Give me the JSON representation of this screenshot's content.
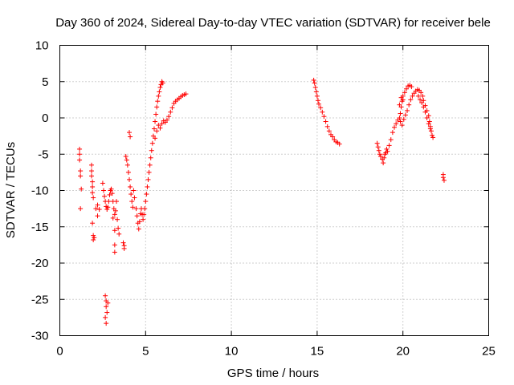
{
  "chart_data": {
    "type": "scatter",
    "title": "Day 360 of 2024, Sidereal Day-to-day VTEC variation (SDTVAR) for receiver bele",
    "xlabel": "GPS time / hours",
    "ylabel": "SDTVAR / TECUs",
    "xlim": [
      0,
      25
    ],
    "ylim": [
      -30,
      10
    ],
    "xticks": [
      0,
      5,
      10,
      15,
      20,
      25
    ],
    "yticks": [
      -30,
      -25,
      -20,
      -15,
      -10,
      -5,
      0,
      5,
      10
    ],
    "xtick_labels": [
      "0",
      "5",
      "10",
      "15",
      "20",
      "25"
    ],
    "ytick_labels": [
      "-30",
      "-25",
      "-20",
      "-15",
      "-10",
      "-5",
      "0",
      "5",
      "10"
    ],
    "grid": true,
    "marker": "+",
    "color": "#ff0000",
    "series": [
      {
        "name": "SDTVAR",
        "points": [
          [
            1.15,
            -4.3
          ],
          [
            1.15,
            -5.0
          ],
          [
            1.15,
            -5.8
          ],
          [
            1.2,
            -7.3
          ],
          [
            1.2,
            -8.0
          ],
          [
            1.25,
            -9.8
          ],
          [
            1.2,
            -12.5
          ],
          [
            1.85,
            -6.5
          ],
          [
            1.85,
            -7.3
          ],
          [
            1.85,
            -8.0
          ],
          [
            1.9,
            -8.8
          ],
          [
            1.9,
            -9.5
          ],
          [
            1.9,
            -10.3
          ],
          [
            1.95,
            -11.0
          ],
          [
            1.9,
            -14.5
          ],
          [
            1.95,
            -16.2
          ],
          [
            1.95,
            -16.8
          ],
          [
            2.0,
            -16.5
          ],
          [
            2.1,
            -12.5
          ],
          [
            2.2,
            -12.0
          ],
          [
            2.3,
            -12.6
          ],
          [
            2.2,
            -13.5
          ],
          [
            2.5,
            -9.0
          ],
          [
            2.55,
            -10.0
          ],
          [
            2.6,
            -10.8
          ],
          [
            2.65,
            -11.5
          ],
          [
            2.7,
            -12.2
          ],
          [
            2.75,
            -12.6
          ],
          [
            2.8,
            -12.3
          ],
          [
            2.85,
            -11.5
          ],
          [
            2.9,
            -10.6
          ],
          [
            2.95,
            -10.0
          ],
          [
            3.0,
            -9.8
          ],
          [
            3.05,
            -10.4
          ],
          [
            3.1,
            -11.5
          ],
          [
            3.15,
            -12.5
          ],
          [
            3.2,
            -13.3
          ],
          [
            3.25,
            -12.8
          ],
          [
            3.3,
            -11.5
          ],
          [
            3.1,
            -13.8
          ],
          [
            3.2,
            -15.5
          ],
          [
            3.2,
            -17.5
          ],
          [
            3.2,
            -18.5
          ],
          [
            3.35,
            -14.0
          ],
          [
            3.4,
            -15.2
          ],
          [
            3.45,
            -16.0
          ],
          [
            2.65,
            -24.5
          ],
          [
            2.7,
            -25.2
          ],
          [
            2.7,
            -26.0
          ],
          [
            2.75,
            -26.8
          ],
          [
            2.65,
            -27.5
          ],
          [
            2.7,
            -28.3
          ],
          [
            2.8,
            -25.5
          ],
          [
            3.7,
            -17.2
          ],
          [
            3.75,
            -17.6
          ],
          [
            3.75,
            -18.0
          ],
          [
            3.85,
            -5.3
          ],
          [
            3.9,
            -5.8
          ],
          [
            3.95,
            -6.5
          ],
          [
            4.0,
            -7.5
          ],
          [
            4.05,
            -8.5
          ],
          [
            4.1,
            -9.5
          ],
          [
            4.15,
            -10.5
          ],
          [
            4.2,
            -11.5
          ],
          [
            4.25,
            -12.3
          ],
          [
            4.05,
            -2.0
          ],
          [
            4.1,
            -2.6
          ],
          [
            4.3,
            -10.0
          ],
          [
            4.35,
            -11.0
          ],
          [
            4.45,
            -12.5
          ],
          [
            4.5,
            -13.5
          ],
          [
            4.55,
            -14.5
          ],
          [
            4.6,
            -15.3
          ],
          [
            4.65,
            -14.3
          ],
          [
            4.7,
            -13.2
          ],
          [
            4.75,
            -12.5
          ],
          [
            4.8,
            -13.3
          ],
          [
            4.85,
            -14.0
          ],
          [
            4.9,
            -13.3
          ],
          [
            4.95,
            -12.5
          ],
          [
            5.0,
            -11.5
          ],
          [
            5.05,
            -10.5
          ],
          [
            5.1,
            -9.5
          ],
          [
            5.15,
            -8.5
          ],
          [
            5.2,
            -7.5
          ],
          [
            5.25,
            -6.5
          ],
          [
            5.3,
            -5.5
          ],
          [
            5.35,
            -4.5
          ],
          [
            5.4,
            -3.5
          ],
          [
            5.45,
            -2.5
          ],
          [
            5.5,
            -1.5
          ],
          [
            5.55,
            -0.5
          ],
          [
            5.6,
            0.5
          ],
          [
            5.65,
            1.5
          ],
          [
            5.7,
            2.3
          ],
          [
            5.75,
            3.0
          ],
          [
            5.8,
            3.6
          ],
          [
            5.85,
            4.2
          ],
          [
            5.9,
            4.6
          ],
          [
            5.95,
            5.0
          ],
          [
            6.0,
            4.8
          ],
          [
            5.55,
            -2.8
          ],
          [
            5.65,
            -1.8
          ],
          [
            5.75,
            -1.0
          ],
          [
            5.85,
            -1.4
          ],
          [
            5.95,
            -0.8
          ],
          [
            6.05,
            -0.4
          ],
          [
            6.15,
            -0.6
          ],
          [
            6.25,
            -0.3
          ],
          [
            6.35,
            0.2
          ],
          [
            6.45,
            0.8
          ],
          [
            6.55,
            1.4
          ],
          [
            6.65,
            2.0
          ],
          [
            6.75,
            2.3
          ],
          [
            6.85,
            2.5
          ],
          [
            6.95,
            2.7
          ],
          [
            7.05,
            2.9
          ],
          [
            7.15,
            3.1
          ],
          [
            7.25,
            3.2
          ],
          [
            7.35,
            3.3
          ],
          [
            14.8,
            5.2
          ],
          [
            14.85,
            4.8
          ],
          [
            14.9,
            4.2
          ],
          [
            14.95,
            3.6
          ],
          [
            15.0,
            3.0
          ],
          [
            15.05,
            2.4
          ],
          [
            15.1,
            1.9
          ],
          [
            15.2,
            1.4
          ],
          [
            15.3,
            0.8
          ],
          [
            15.4,
            0.2
          ],
          [
            15.5,
            -0.5
          ],
          [
            15.6,
            -1.2
          ],
          [
            15.7,
            -1.8
          ],
          [
            15.8,
            -2.3
          ],
          [
            15.9,
            -2.6
          ],
          [
            16.0,
            -3.0
          ],
          [
            16.1,
            -3.3
          ],
          [
            16.2,
            -3.4
          ],
          [
            16.3,
            -3.6
          ],
          [
            18.5,
            -3.5
          ],
          [
            18.55,
            -4.0
          ],
          [
            18.6,
            -4.5
          ],
          [
            18.65,
            -5.0
          ],
          [
            18.7,
            -5.3
          ],
          [
            18.8,
            -5.7
          ],
          [
            18.85,
            -6.2
          ],
          [
            18.9,
            -5.5
          ],
          [
            18.95,
            -5.0
          ],
          [
            19.0,
            -4.8
          ],
          [
            19.05,
            -4.3
          ],
          [
            19.1,
            -4.6
          ],
          [
            19.2,
            -3.8
          ],
          [
            19.3,
            -3.0
          ],
          [
            19.4,
            -2.0
          ],
          [
            19.5,
            -1.3
          ],
          [
            19.6,
            -0.8
          ],
          [
            19.7,
            -0.3
          ],
          [
            19.8,
            0.0
          ],
          [
            19.85,
            0.6
          ],
          [
            19.9,
            1.5
          ],
          [
            19.95,
            2.3
          ],
          [
            20.0,
            3.0
          ],
          [
            20.1,
            3.5
          ],
          [
            20.2,
            4.0
          ],
          [
            20.3,
            4.4
          ],
          [
            20.4,
            4.5
          ],
          [
            20.5,
            4.3
          ],
          [
            19.8,
            1.8
          ],
          [
            19.9,
            2.8
          ],
          [
            20.0,
            2.5
          ],
          [
            19.85,
            -0.5
          ],
          [
            19.95,
            -1.0
          ],
          [
            20.05,
            -0.2
          ],
          [
            20.15,
            0.4
          ],
          [
            20.25,
            1.0
          ],
          [
            20.35,
            1.8
          ],
          [
            20.45,
            2.5
          ],
          [
            20.55,
            3.0
          ],
          [
            20.65,
            3.4
          ],
          [
            20.75,
            3.7
          ],
          [
            20.85,
            3.9
          ],
          [
            20.95,
            3.8
          ],
          [
            21.05,
            3.5
          ],
          [
            21.15,
            3.0
          ],
          [
            21.2,
            2.4
          ],
          [
            21.3,
            1.7
          ],
          [
            21.4,
            1.0
          ],
          [
            21.5,
            0.3
          ],
          [
            21.55,
            -0.5
          ],
          [
            21.6,
            -1.2
          ],
          [
            21.65,
            -1.8
          ],
          [
            21.7,
            -2.4
          ],
          [
            21.75,
            -2.7
          ],
          [
            20.9,
            3.0
          ],
          [
            21.0,
            2.5
          ],
          [
            21.1,
            2.1
          ],
          [
            21.2,
            1.5
          ],
          [
            21.3,
            0.8
          ],
          [
            21.4,
            0.0
          ],
          [
            21.5,
            -0.8
          ],
          [
            21.6,
            -1.5
          ],
          [
            22.35,
            -7.8
          ],
          [
            22.35,
            -8.2
          ],
          [
            22.4,
            -8.6
          ]
        ]
      }
    ]
  }
}
